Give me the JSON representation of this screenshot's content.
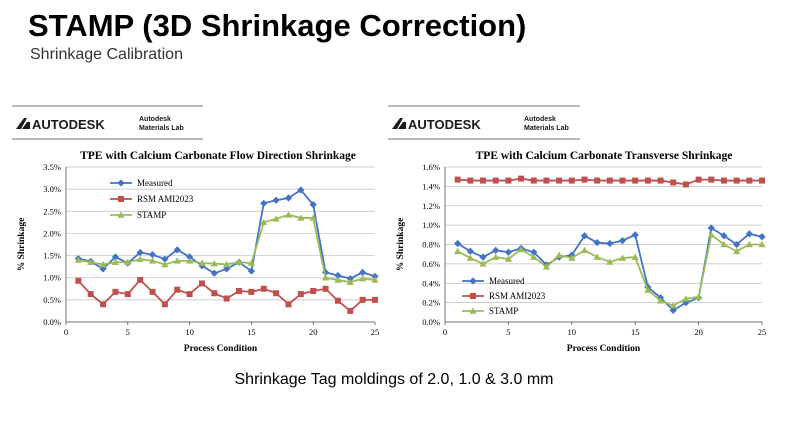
{
  "slide": {
    "title": "STAMP (3D Shrinkage Correction)",
    "subtitle": "Shrinkage Calibration",
    "caption": "Shrinkage Tag moldings of 2.0, 1.0 & 3.0 mm"
  },
  "logos": [
    {
      "brand": "AUTODESK",
      "lab_line1": "Autodesk",
      "lab_line2": "Materials Lab"
    },
    {
      "brand": "AUTODESK",
      "lab_line1": "Autodesk",
      "lab_line2": "Materials Lab"
    }
  ],
  "colors": {
    "measured": "#4472c4",
    "rsm": "#c0504d",
    "stamp": "#9bbb59"
  },
  "chart_data": [
    {
      "type": "line",
      "title": "TPE with Calcium Carbonate Flow Direction Shrinkage",
      "xlabel": "Process Condition",
      "ylabel": "% Shrinkage",
      "xlim": [
        0,
        25
      ],
      "ylim": [
        0,
        3.5
      ],
      "xticks": [
        0,
        5,
        10,
        15,
        20,
        25
      ],
      "yticks": [
        0,
        0.5,
        1.0,
        1.5,
        2.0,
        2.5,
        3.0,
        3.5
      ],
      "ytick_labels": [
        "0.0%",
        "0.5%",
        "1.0%",
        "1.5%",
        "2.0%",
        "2.5%",
        "3.0%",
        "3.5%"
      ],
      "grid": "horizontal",
      "legend_position": "top-left",
      "x": [
        1,
        2,
        3,
        4,
        5,
        6,
        7,
        8,
        9,
        10,
        11,
        12,
        13,
        14,
        15,
        16,
        17,
        18,
        19,
        20,
        21,
        22,
        23,
        24,
        25
      ],
      "series": [
        {
          "name": "Measured",
          "marker": "diamond",
          "values": [
            1.43,
            1.37,
            1.2,
            1.47,
            1.33,
            1.57,
            1.52,
            1.42,
            1.63,
            1.47,
            1.27,
            1.1,
            1.2,
            1.35,
            1.15,
            2.68,
            2.75,
            2.8,
            2.98,
            2.65,
            1.12,
            1.05,
            0.98,
            1.12,
            1.03
          ]
        },
        {
          "name": "RSM AMI2023",
          "marker": "square",
          "values": [
            0.93,
            0.63,
            0.4,
            0.68,
            0.63,
            0.95,
            0.68,
            0.4,
            0.73,
            0.63,
            0.87,
            0.65,
            0.53,
            0.7,
            0.68,
            0.75,
            0.65,
            0.4,
            0.63,
            0.7,
            0.75,
            0.48,
            0.25,
            0.5,
            0.5
          ]
        },
        {
          "name": "STAMP",
          "marker": "triangle",
          "values": [
            1.4,
            1.35,
            1.3,
            1.35,
            1.35,
            1.42,
            1.38,
            1.3,
            1.38,
            1.38,
            1.33,
            1.32,
            1.3,
            1.35,
            1.33,
            2.25,
            2.33,
            2.42,
            2.35,
            2.35,
            1.0,
            0.95,
            0.9,
            0.98,
            0.95
          ]
        }
      ]
    },
    {
      "type": "line",
      "title": "TPE with Calcium Carbonate Transverse Shrinkage",
      "xlabel": "Process Condition",
      "ylabel": "% Shrinkage",
      "xlim": [
        0,
        25
      ],
      "ylim": [
        0,
        1.6
      ],
      "xticks": [
        0,
        5,
        10,
        15,
        20,
        25
      ],
      "yticks": [
        0,
        0.2,
        0.4,
        0.6,
        0.8,
        1.0,
        1.2,
        1.4,
        1.6
      ],
      "ytick_labels": [
        "0.0%",
        "0.2%",
        "0.4%",
        "0.6%",
        "0.8%",
        "1.0%",
        "1.2%",
        "1.4%",
        "1.6%"
      ],
      "grid": "horizontal",
      "legend_position": "bottom-left",
      "x": [
        1,
        2,
        3,
        4,
        5,
        6,
        7,
        8,
        9,
        10,
        11,
        12,
        13,
        14,
        15,
        16,
        17,
        18,
        19,
        20,
        21,
        22,
        23,
        24,
        25
      ],
      "series": [
        {
          "name": "Measured",
          "marker": "diamond",
          "values": [
            0.81,
            0.73,
            0.67,
            0.74,
            0.72,
            0.76,
            0.72,
            0.59,
            0.67,
            0.69,
            0.89,
            0.82,
            0.81,
            0.84,
            0.9,
            0.36,
            0.25,
            0.12,
            0.2,
            0.25,
            0.97,
            0.89,
            0.8,
            0.91,
            0.88
          ]
        },
        {
          "name": "RSM AMI2023",
          "marker": "square",
          "values": [
            1.47,
            1.46,
            1.46,
            1.46,
            1.46,
            1.48,
            1.46,
            1.46,
            1.46,
            1.46,
            1.47,
            1.46,
            1.46,
            1.46,
            1.46,
            1.46,
            1.46,
            1.44,
            1.42,
            1.47,
            1.47,
            1.46,
            1.46,
            1.46,
            1.46
          ]
        },
        {
          "name": "STAMP",
          "marker": "triangle",
          "values": [
            0.73,
            0.66,
            0.6,
            0.67,
            0.65,
            0.75,
            0.67,
            0.57,
            0.69,
            0.66,
            0.74,
            0.67,
            0.62,
            0.66,
            0.67,
            0.33,
            0.22,
            0.17,
            0.24,
            0.26,
            0.9,
            0.8,
            0.73,
            0.8,
            0.8
          ]
        }
      ]
    }
  ]
}
